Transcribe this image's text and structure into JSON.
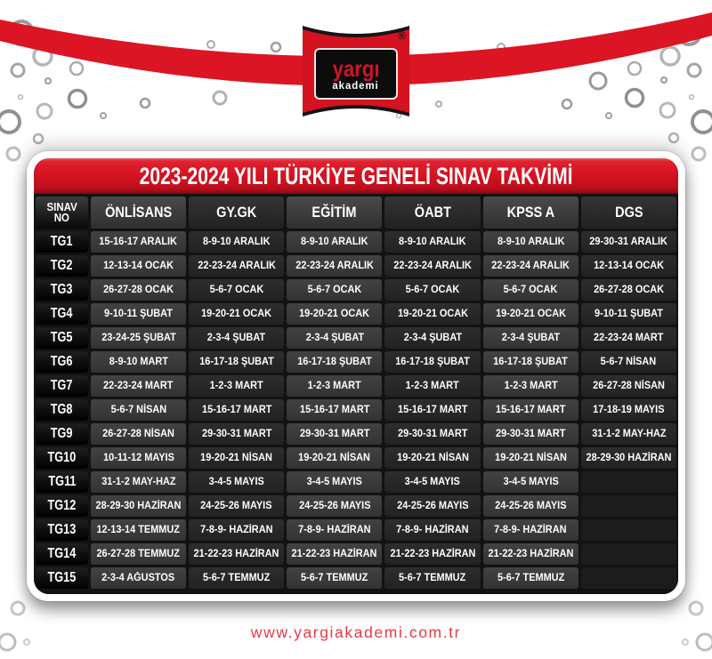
{
  "brand": {
    "name": "yargı",
    "sub": "akademi",
    "registered": "®"
  },
  "title": "2023-2024 YILI TÜRKİYE GENELİ SINAV TAKVİMİ",
  "footer": {
    "url": "www.yargiakademi.com.tr"
  },
  "colors": {
    "accent_red": "#d41220",
    "swoosh_red": "#dc1524",
    "footer_red": "#e93a42",
    "table_base": "#121212",
    "cell_light": "#3d3d3d",
    "cell_dark": "#272727",
    "empty_cell": "#1c1c1c"
  },
  "table": {
    "row_header_line1": "SINAV",
    "row_header_line2": "NO",
    "columns": [
      "ÖNLİSANS",
      "GY.GK",
      "EĞİTİM",
      "ÖABT",
      "KPSS A",
      "DGS"
    ],
    "rows": [
      {
        "no": "TG1",
        "cells": [
          "15-16-17 ARALIK",
          "8-9-10 ARALIK",
          "8-9-10 ARALIK",
          "8-9-10 ARALIK",
          "8-9-10 ARALIK",
          "29-30-31 ARALIK"
        ]
      },
      {
        "no": "TG2",
        "cells": [
          "12-13-14 OCAK",
          "22-23-24 ARALIK",
          "22-23-24 ARALIK",
          "22-23-24 ARALIK",
          "22-23-24 ARALIK",
          "12-13-14 OCAK"
        ]
      },
      {
        "no": "TG3",
        "cells": [
          "26-27-28 OCAK",
          "5-6-7 OCAK",
          "5-6-7 OCAK",
          "5-6-7 OCAK",
          "5-6-7 OCAK",
          "26-27-28 OCAK"
        ]
      },
      {
        "no": "TG4",
        "cells": [
          "9-10-11 ŞUBAT",
          "19-20-21 OCAK",
          "19-20-21 OCAK",
          "19-20-21 OCAK",
          "19-20-21 OCAK",
          "9-10-11 ŞUBAT"
        ]
      },
      {
        "no": "TG5",
        "cells": [
          "23-24-25 ŞUBAT",
          "2-3-4 ŞUBAT",
          "2-3-4 ŞUBAT",
          "2-3-4 ŞUBAT",
          "2-3-4 ŞUBAT",
          "22-23-24 MART"
        ]
      },
      {
        "no": "TG6",
        "cells": [
          "8-9-10 MART",
          "16-17-18 ŞUBAT",
          "16-17-18 ŞUBAT",
          "16-17-18 ŞUBAT",
          "16-17-18 ŞUBAT",
          "5-6-7 NİSAN"
        ]
      },
      {
        "no": "TG7",
        "cells": [
          "22-23-24 MART",
          "1-2-3 MART",
          "1-2-3 MART",
          "1-2-3 MART",
          "1-2-3 MART",
          "26-27-28 NİSAN"
        ]
      },
      {
        "no": "TG8",
        "cells": [
          "5-6-7 NİSAN",
          "15-16-17 MART",
          "15-16-17 MART",
          "15-16-17 MART",
          "15-16-17 MART",
          "17-18-19 MAYIS"
        ]
      },
      {
        "no": "TG9",
        "cells": [
          "26-27-28 NİSAN",
          "29-30-31 MART",
          "29-30-31 MART",
          "29-30-31 MART",
          "29-30-31 MART",
          "31-1-2 MAY-HAZ"
        ]
      },
      {
        "no": "TG10",
        "cells": [
          "10-11-12 MAYIS",
          "19-20-21 NİSAN",
          "19-20-21 NİSAN",
          "19-20-21 NİSAN",
          "19-20-21 NİSAN",
          "28-29-30 HAZİRAN"
        ]
      },
      {
        "no": "TG11",
        "cells": [
          "31-1-2 MAY-HAZ",
          "3-4-5 MAYIS",
          "3-4-5 MAYIS",
          "3-4-5 MAYIS",
          "3-4-5 MAYIS",
          ""
        ]
      },
      {
        "no": "TG12",
        "cells": [
          "28-29-30 HAZİRAN",
          "24-25-26 MAYIS",
          "24-25-26 MAYIS",
          "24-25-26 MAYIS",
          "24-25-26 MAYIS",
          ""
        ]
      },
      {
        "no": "TG13",
        "cells": [
          "12-13-14 TEMMUZ",
          "7-8-9- HAZİRAN",
          "7-8-9- HAZİRAN",
          "7-8-9- HAZİRAN",
          "7-8-9- HAZİRAN",
          ""
        ]
      },
      {
        "no": "TG14",
        "cells": [
          "26-27-28 TEMMUZ",
          "21-22-23 HAZİRAN",
          "21-22-23 HAZİRAN",
          "21-22-23 HAZİRAN",
          "21-22-23 HAZİRAN",
          ""
        ]
      },
      {
        "no": "TG15",
        "cells": [
          "2-3-4 AĞUSTOS",
          "5-6-7 TEMMUZ",
          "5-6-7 TEMMUZ",
          "5-6-7 TEMMUZ",
          "5-6-7 TEMMUZ",
          ""
        ]
      }
    ]
  }
}
